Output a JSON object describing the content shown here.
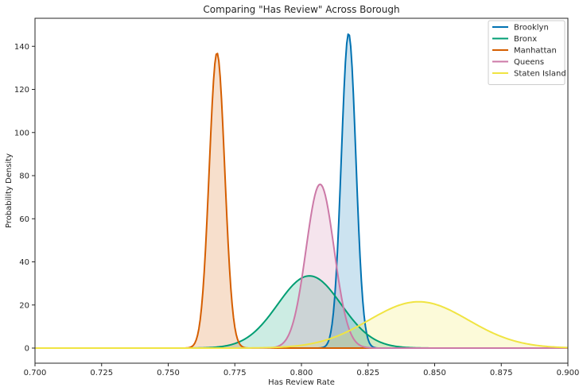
{
  "chart_data": {
    "type": "area",
    "title": "Comparing \"Has Review\" Across Borough",
    "xlabel": "Has Review Rate",
    "ylabel": "Probability Density",
    "xlim": [
      0.7,
      0.9
    ],
    "ylim": [
      -7,
      153
    ],
    "x_ticks": [
      "0.700",
      "0.725",
      "0.750",
      "0.775",
      "0.800",
      "0.825",
      "0.850",
      "0.875",
      "0.900"
    ],
    "y_ticks": [
      "0",
      "20",
      "40",
      "60",
      "80",
      "100",
      "120",
      "140"
    ],
    "grid": false,
    "legend_position": "top-right",
    "series": [
      {
        "name": "Brooklyn",
        "color": "#0072b2",
        "peak_x": 0.8177,
        "peak_density": 146,
        "sd": 0.00273
      },
      {
        "name": "Bronx",
        "color": "#009e73",
        "peak_x": 0.803,
        "peak_density": 33.5,
        "sd": 0.0119
      },
      {
        "name": "Manhattan",
        "color": "#d55e00",
        "peak_x": 0.7683,
        "peak_density": 137,
        "sd": 0.00291
      },
      {
        "name": "Queens",
        "color": "#cc79a7",
        "peak_x": 0.807,
        "peak_density": 76,
        "sd": 0.00525
      },
      {
        "name": "Staten Island",
        "color": "#f0e442",
        "peak_x": 0.844,
        "peak_density": 21.5,
        "sd": 0.0186
      }
    ]
  }
}
